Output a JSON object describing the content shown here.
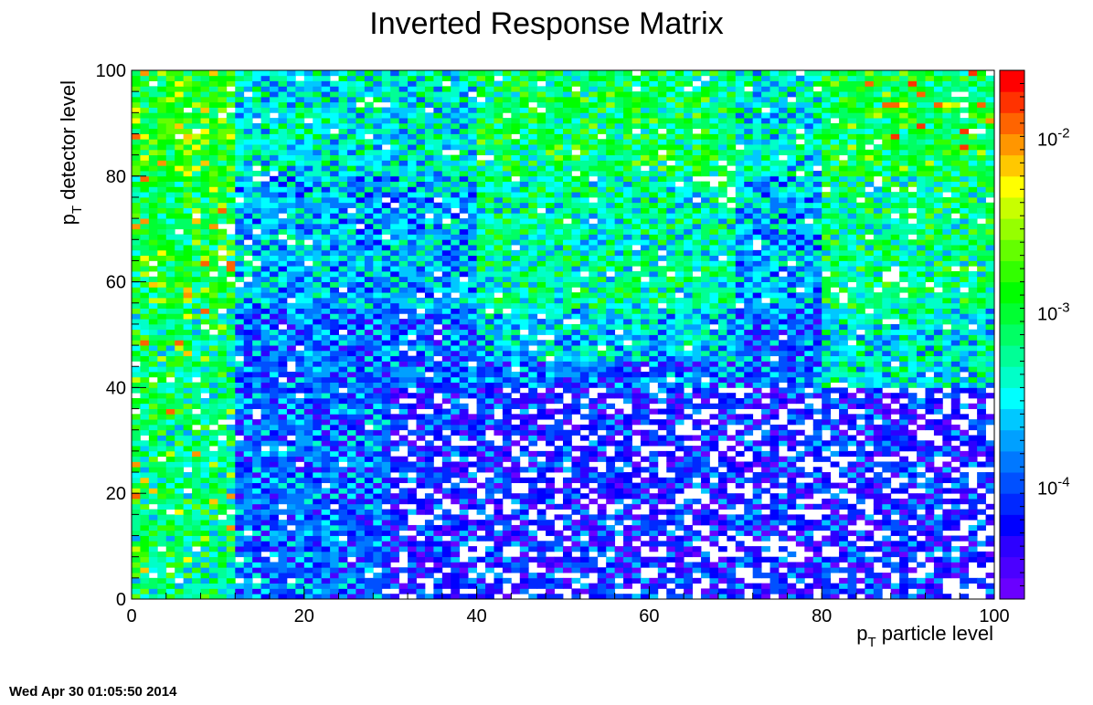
{
  "chart_data": {
    "type": "heatmap",
    "title": "Inverted Response Matrix",
    "xlabel": {
      "main": "p",
      "sub": "T",
      "rest": " particle level"
    },
    "ylabel": {
      "main": "p",
      "sub": "T",
      "rest": " detector level"
    },
    "xlim": [
      0,
      100
    ],
    "ylim": [
      0,
      100
    ],
    "bins": {
      "x": 100,
      "y": 100
    },
    "x_ticks": [
      "0",
      "20",
      "40",
      "60",
      "80",
      "100"
    ],
    "y_ticks": [
      "0",
      "20",
      "40",
      "60",
      "80",
      "100"
    ],
    "colorbar": {
      "scale": "log",
      "visible_labels": [
        {
          "base": "10",
          "exp": "-2",
          "pos": 0.87
        },
        {
          "base": "10",
          "exp": "-3",
          "pos": 0.54
        },
        {
          "base": "10",
          "exp": "-4",
          "pos": 0.21
        }
      ],
      "palette": [
        "#6a00ff",
        "#4b00ff",
        "#2d00ff",
        "#0000ff",
        "#0028ff",
        "#0050ff",
        "#0078ff",
        "#00a0ff",
        "#00c8ff",
        "#00ffff",
        "#00ffc8",
        "#00ff96",
        "#00ff64",
        "#00ff32",
        "#00ff00",
        "#32ff00",
        "#64ff00",
        "#96ff00",
        "#c8ff00",
        "#ffff00",
        "#ffc800",
        "#ff9600",
        "#ff6400",
        "#ff3200",
        "#ff0000"
      ]
    },
    "grid": false,
    "legend": "none"
  },
  "footer": {
    "timestamp": "Wed Apr 30 01:05:50 2014"
  }
}
